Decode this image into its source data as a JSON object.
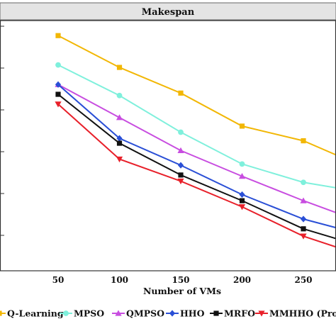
{
  "chart_data": {
    "type": "line",
    "title": "Makespan",
    "xlabel": "Number of VMs",
    "ylabel": "",
    "x": [
      50,
      100,
      150,
      200,
      250,
      280
    ],
    "x_ticks": [
      50,
      100,
      150,
      200,
      250
    ],
    "xlim": [
      0,
      280
    ],
    "ylim": [
      0,
      100
    ],
    "grid": false,
    "legend_position": "bottom",
    "series": [
      {
        "name": "Q-Learning",
        "color": "#f2b705",
        "marker": "square",
        "values": [
          95.0,
          82.0,
          71.5,
          58.0,
          52.0,
          45.5
        ]
      },
      {
        "name": "MPSO",
        "color": "#7ff0dc",
        "marker": "circle",
        "values": [
          83.0,
          70.5,
          55.5,
          42.5,
          35.0,
          32.5
        ]
      },
      {
        "name": "QMPSO",
        "color": "#c84de0",
        "marker": "triangle-up",
        "values": [
          75.0,
          61.5,
          48.0,
          37.5,
          27.5,
          22.0
        ]
      },
      {
        "name": "HHO",
        "color": "#2a4fd6",
        "marker": "diamond",
        "values": [
          75.0,
          53.0,
          42.0,
          30.0,
          20.0,
          16.0
        ]
      },
      {
        "name": "MRFO",
        "color": "#111111",
        "marker": "square",
        "values": [
          71.0,
          51.0,
          38.0,
          27.5,
          16.0,
          11.5
        ]
      },
      {
        "name": "MMHHO (Proposed)",
        "color": "#e8202a",
        "marker": "triangle-down",
        "values": [
          67.0,
          44.5,
          35.5,
          25.0,
          13.0,
          8.0
        ]
      }
    ]
  }
}
